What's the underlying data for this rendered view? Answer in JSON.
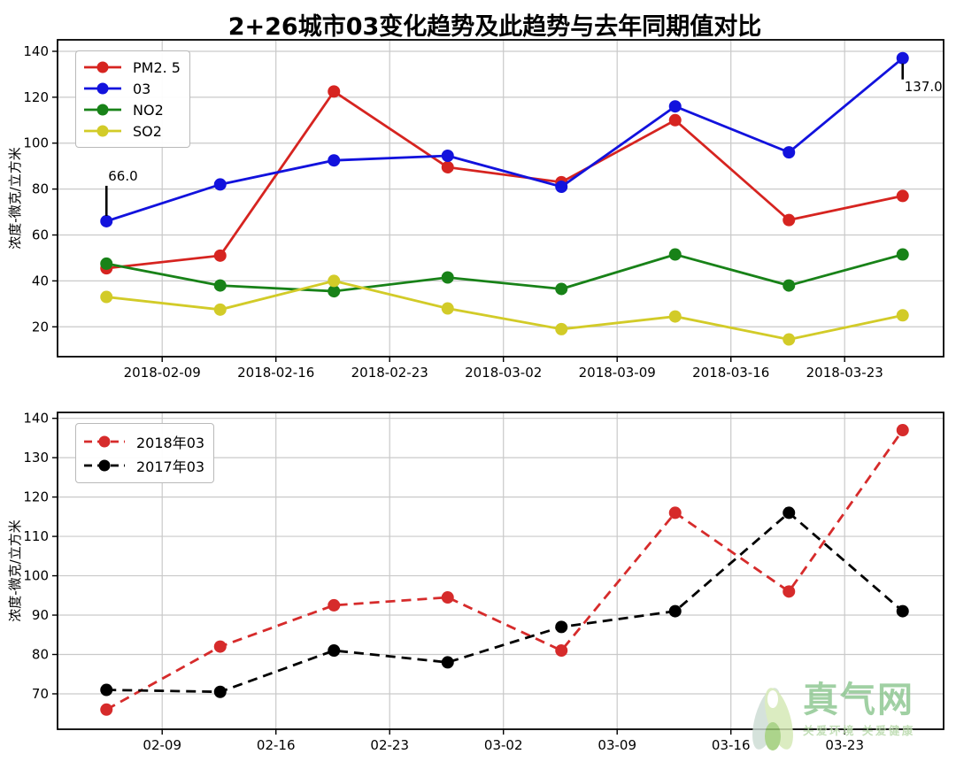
{
  "title": "2+26城市03变化趋势及此趋势与去年同期值对比",
  "watermark": {
    "site_name": "真气网",
    "tagline": "关爱环境 关爱健康",
    "logo": "leaf-ribbon-logo",
    "brand_color": "#8cc68f"
  },
  "chart_data": [
    {
      "type": "line",
      "title": "2+26城市03变化趋势及此趋势与去年同期值对比",
      "xlabel": "",
      "ylabel": "浓度-微克/立方米",
      "grid": true,
      "legend_position": "upper-left",
      "x": [
        0,
        1,
        2,
        3,
        4,
        5,
        6,
        7
      ],
      "xlim": [
        -0.43,
        7.36
      ],
      "ylim": [
        7,
        145
      ],
      "x_tick_pos": [
        0.49,
        1.49,
        2.49,
        3.49,
        4.49,
        5.49,
        6.49
      ],
      "x_tick_labels": [
        "2018-02-09",
        "2018-02-16",
        "2018-02-23",
        "2018-03-02",
        "2018-03-09",
        "2018-03-16",
        "2018-03-23"
      ],
      "y_ticks": [
        20,
        40,
        60,
        80,
        100,
        120,
        140
      ],
      "series": [
        {
          "name": "PM2. 5",
          "color": "#d62420",
          "dashed": false,
          "values": [
            45.5,
            51,
            122.5,
            89.5,
            83,
            110,
            66.5,
            77
          ]
        },
        {
          "name": "03",
          "color": "#1212dd",
          "dashed": false,
          "values": [
            66,
            82,
            92.5,
            94.5,
            81,
            116,
            96,
            137
          ]
        },
        {
          "name": "NO2",
          "color": "#188218",
          "dashed": false,
          "values": [
            47.5,
            38,
            35.5,
            41.5,
            36.5,
            51.5,
            38,
            51.5
          ]
        },
        {
          "name": "SO2",
          "color": "#d2cb28",
          "dashed": false,
          "values": [
            33,
            27.5,
            40,
            28,
            19,
            24.5,
            14.5,
            25
          ]
        }
      ],
      "annotations": [
        {
          "text": "66.0",
          "x": 0,
          "y": 66,
          "dir": "above"
        },
        {
          "text": "137.0",
          "x": 7,
          "y": 137,
          "dir": "below"
        }
      ]
    },
    {
      "type": "line",
      "title": "",
      "xlabel": "",
      "ylabel": "浓度-微克/立方米",
      "grid": true,
      "legend_position": "upper-left",
      "x": [
        0,
        1,
        2,
        3,
        4,
        5,
        6,
        7
      ],
      "xlim": [
        -0.43,
        7.36
      ],
      "ylim": [
        61,
        141.5
      ],
      "x_tick_pos": [
        0.49,
        1.49,
        2.49,
        3.49,
        4.49,
        5.49,
        6.49
      ],
      "x_tick_labels": [
        "02-09",
        "02-16",
        "02-23",
        "03-02",
        "03-09",
        "03-16",
        "03-23"
      ],
      "y_ticks": [
        70,
        80,
        90,
        100,
        110,
        120,
        130,
        140
      ],
      "series": [
        {
          "name": "2018年03",
          "color": "#d62b2b",
          "dashed": true,
          "values": [
            66,
            82,
            92.5,
            94.5,
            81,
            116,
            96,
            137
          ]
        },
        {
          "name": "2017年03",
          "color": "#000000",
          "dashed": true,
          "values": [
            71,
            70.5,
            81,
            78,
            87,
            91,
            116,
            91
          ]
        }
      ],
      "annotations": []
    }
  ]
}
